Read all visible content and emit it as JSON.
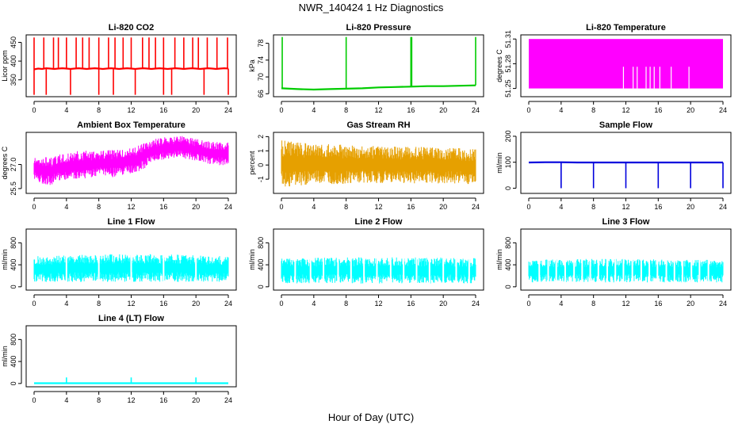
{
  "figure": {
    "title": "NWR_140424  1 Hz Diagnostics",
    "xlabel": "Hour of Day (UTC)"
  },
  "chart_data": [
    {
      "type": "line",
      "title": "Li-820 CO2",
      "ylabel": "Licor ppm",
      "color": "#ff0000",
      "xlim": [
        0,
        24
      ],
      "ylim": [
        305,
        470
      ],
      "xticks": [
        "0",
        "4",
        "8",
        "12",
        "16",
        "20",
        "24"
      ],
      "yticks": [
        "350",
        "400",
        "450"
      ],
      "x": [
        0,
        0.5,
        1,
        1.5,
        2,
        2.5,
        3,
        3.5,
        4,
        4.5,
        5,
        5.5,
        6,
        6.5,
        7,
        7.5,
        8,
        8.5,
        9,
        9.5,
        10,
        10.5,
        11,
        11.5,
        12,
        12.5,
        13,
        13.5,
        14,
        14.5,
        15,
        15.5,
        16,
        16.5,
        17,
        17.5,
        18,
        18.5,
        19,
        19.5,
        20,
        20.5,
        21,
        21.5,
        22,
        22.5,
        23,
        23.5,
        24
      ],
      "values": [
        378,
        380,
        379,
        381,
        380,
        379,
        380,
        381,
        380,
        379,
        380,
        381,
        380,
        379,
        380,
        381,
        380,
        379,
        380,
        381,
        380,
        379,
        380,
        381,
        380,
        379,
        380,
        381,
        380,
        379,
        380,
        381,
        380,
        379,
        380,
        381,
        380,
        379,
        380,
        381,
        380,
        379,
        380,
        381,
        380,
        379,
        380,
        381,
        380
      ],
      "spikes": [
        0.0,
        1.2,
        2.4,
        3.0,
        4.0,
        5.2,
        6.0,
        6.8,
        8.0,
        9.2,
        10.0,
        11.0,
        12.0,
        13.4,
        14.2,
        15.0,
        16.0,
        17.4,
        18.5,
        19.6,
        20.3,
        21.4,
        22.6,
        23.9
      ],
      "spike_max": 463,
      "dips": [
        0.0,
        1.5,
        4.5,
        8.0,
        9.8,
        12.5,
        16.0,
        17.0,
        21.0,
        24.0
      ],
      "dip_min": 310
    },
    {
      "type": "line",
      "title": "Li-820 Pressure",
      "ylabel": "kPa",
      "color": "#00cc00",
      "xlim": [
        0,
        24
      ],
      "ylim": [
        65.3,
        80
      ],
      "xticks": [
        "0",
        "4",
        "8",
        "12",
        "16",
        "20",
        "24"
      ],
      "yticks": [
        "66",
        "70",
        "74",
        "78"
      ],
      "x": [
        0,
        2,
        4,
        6,
        8,
        10,
        12,
        14,
        16,
        18,
        20,
        22,
        24
      ],
      "values": [
        67.3,
        67.1,
        67.0,
        67.1,
        67.2,
        67.3,
        67.5,
        67.6,
        67.7,
        67.8,
        67.8,
        67.9,
        68.0
      ],
      "spikes": [
        0.1,
        8.0,
        16.0,
        16.1,
        24.0
      ],
      "spike_max": 79.5
    },
    {
      "type": "area",
      "title": "Li-820 Temperature",
      "ylabel": "degrees C",
      "color": "#ff00ff",
      "xlim": [
        0,
        24
      ],
      "ylim": [
        51.24,
        51.315
      ],
      "xticks": [
        "0",
        "4",
        "8",
        "12",
        "16",
        "20",
        "24"
      ],
      "yticks": [
        "51.25",
        "51.28",
        "51.31"
      ],
      "band": [
        51.25,
        51.31
      ],
      "gaps": [
        11.7,
        12.9,
        13.4,
        14.5,
        15.0,
        15.5,
        16.2,
        17.6,
        19.8
      ]
    },
    {
      "type": "area",
      "title": "Ambient Box Temperature",
      "ylabel": "degrees C",
      "color": "#ff00ff",
      "xlim": [
        0,
        24
      ],
      "ylim": [
        25.2,
        29.0
      ],
      "xticks": [
        "0",
        "4",
        "8",
        "12",
        "16",
        "20",
        "24"
      ],
      "yticks": [
        "25.5",
        "27.0"
      ],
      "x": [
        0,
        1,
        2,
        3,
        4,
        5,
        6,
        7,
        8,
        9,
        10,
        11,
        12,
        13,
        14,
        15,
        16,
        17,
        18,
        19,
        20,
        21,
        22,
        23,
        24
      ],
      "low": [
        26.1,
        25.8,
        25.7,
        26.0,
        26.0,
        26.1,
        26.0,
        26.2,
        26.3,
        26.2,
        26.2,
        26.3,
        26.4,
        26.5,
        26.9,
        27.2,
        27.3,
        27.4,
        27.5,
        27.3,
        27.2,
        27.1,
        27.0,
        26.9,
        27.0
      ],
      "high": [
        27.4,
        27.5,
        27.4,
        27.6,
        27.7,
        27.8,
        27.9,
        27.8,
        27.8,
        27.9,
        27.9,
        28.0,
        28.0,
        28.2,
        28.5,
        28.6,
        28.7,
        28.7,
        28.8,
        28.7,
        28.6,
        28.5,
        28.4,
        28.4,
        28.4
      ]
    },
    {
      "type": "area",
      "title": "Gas Stream RH",
      "ylabel": "percent",
      "color": "#e6a000",
      "xlim": [
        0,
        24
      ],
      "ylim": [
        -2.0,
        2.3
      ],
      "xticks": [
        "0",
        "4",
        "8",
        "12",
        "16",
        "20",
        "24"
      ],
      "yticks": [
        "-1",
        "0",
        "1",
        "2"
      ],
      "x": [
        0,
        2,
        4,
        6,
        8,
        10,
        12,
        14,
        16,
        18,
        20,
        22,
        24
      ],
      "low": [
        -1.6,
        -1.5,
        -1.4,
        -1.4,
        -1.4,
        -1.3,
        -1.3,
        -1.3,
        -1.3,
        -1.3,
        -1.3,
        -1.3,
        -1.4
      ],
      "high": [
        1.8,
        1.6,
        1.5,
        1.5,
        1.4,
        1.4,
        1.3,
        1.3,
        1.3,
        1.3,
        1.2,
        1.2,
        1.1
      ]
    },
    {
      "type": "line",
      "title": "Sample Flow",
      "ylabel": "ml/min",
      "color": "#0000dd",
      "xlim": [
        0,
        24
      ],
      "ylim": [
        -20,
        215
      ],
      "xticks": [
        "0",
        "4",
        "8",
        "12",
        "16",
        "20",
        "24"
      ],
      "yticks": [
        "0",
        "100",
        "200"
      ],
      "x": [
        0,
        2,
        4,
        6,
        8,
        10,
        12,
        14,
        16,
        18,
        20,
        22,
        24
      ],
      "values": [
        99,
        100,
        100,
        99,
        99,
        99,
        99,
        99,
        99,
        99,
        99,
        99,
        99
      ],
      "dips": [
        4.0,
        8.0,
        12.0,
        16.0,
        20.0,
        24.0
      ],
      "dip_min": 0
    },
    {
      "type": "area",
      "title": "Line 1 Flow",
      "ylabel": "ml/min",
      "color": "#00ffff",
      "xlim": [
        0,
        24
      ],
      "ylim": [
        -60,
        1050
      ],
      "xticks": [
        "0",
        "4",
        "8",
        "12",
        "16",
        "20",
        "24"
      ],
      "yticks": [
        "0",
        "400",
        "800"
      ],
      "x": [
        0,
        4,
        8,
        12,
        16,
        20,
        24
      ],
      "low": [
        90,
        90,
        90,
        90,
        90,
        90,
        90
      ],
      "high": [
        560,
        580,
        590,
        600,
        590,
        580,
        560
      ],
      "gaps": [
        4.0,
        8.0,
        12.0,
        16.0,
        20.0
      ]
    },
    {
      "type": "area",
      "title": "Line 2 Flow",
      "ylabel": "ml/min",
      "color": "#00ffff",
      "xlim": [
        0,
        24
      ],
      "ylim": [
        -60,
        1050
      ],
      "xticks": [
        "0",
        "4",
        "8",
        "12",
        "16",
        "20",
        "24"
      ],
      "yticks": [
        "0",
        "400",
        "800"
      ],
      "x": [
        0,
        4,
        8,
        12,
        16,
        20,
        24
      ],
      "low": [
        60,
        60,
        60,
        60,
        60,
        60,
        60
      ],
      "high": [
        520,
        530,
        540,
        540,
        540,
        530,
        520
      ],
      "gaps": [
        1.7,
        3.6,
        5.2,
        7.0,
        8.6,
        10.2,
        11.8,
        13.5,
        15.1,
        16.7,
        18.3,
        20.0,
        21.6,
        23.2
      ]
    },
    {
      "type": "area",
      "title": "Line 3 Flow",
      "ylabel": "ml/min",
      "color": "#00ffff",
      "xlim": [
        0,
        24
      ],
      "ylim": [
        -60,
        1050
      ],
      "xticks": [
        "0",
        "4",
        "8",
        "12",
        "16",
        "20",
        "24"
      ],
      "yticks": [
        "0",
        "400",
        "800"
      ],
      "x": [
        0,
        4,
        8,
        12,
        16,
        20,
        24
      ],
      "low": [
        80,
        80,
        80,
        80,
        80,
        80,
        80
      ],
      "high": [
        490,
        500,
        510,
        510,
        500,
        490,
        490
      ],
      "gaps": [
        1.3,
        2.4,
        3.4,
        4.5,
        5.6,
        6.6,
        7.6,
        8.6,
        9.7,
        10.7,
        11.7,
        12.8,
        13.9,
        14.9,
        15.9,
        17.0,
        18.0,
        19.0,
        20.1,
        21.1,
        22.2
      ]
    },
    {
      "type": "line",
      "title": "Line 4 (LT) Flow",
      "ylabel": "ml/min",
      "color": "#00ffff",
      "xlim": [
        0,
        24
      ],
      "ylim": [
        -60,
        1050
      ],
      "xticks": [
        "0",
        "4",
        "8",
        "12",
        "16",
        "20",
        "24"
      ],
      "yticks": [
        "0",
        "400",
        "800"
      ],
      "x": [
        0,
        4,
        8,
        12,
        16,
        20,
        24
      ],
      "values": [
        5,
        5,
        5,
        5,
        5,
        5,
        5
      ],
      "spikes": [
        4.0,
        12.0,
        20.0
      ],
      "spike_max": 110
    }
  ]
}
